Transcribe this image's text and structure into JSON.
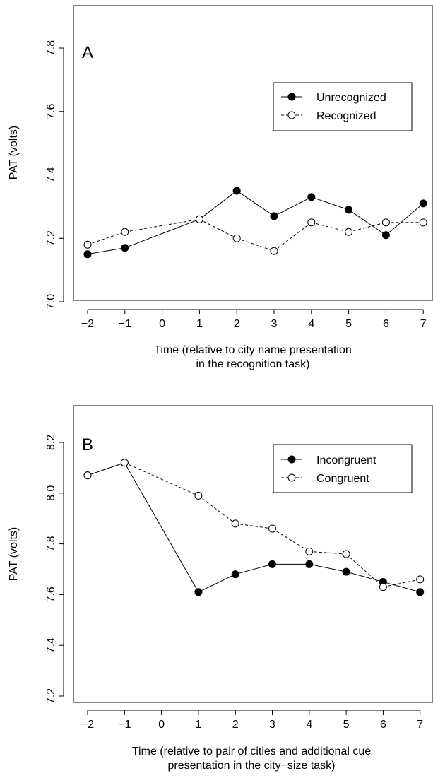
{
  "chart_data": [
    {
      "type": "line",
      "panel_label": "A",
      "x": [
        -2,
        -1,
        1,
        2,
        3,
        4,
        5,
        6,
        7
      ],
      "x_ticks": [
        -2,
        -1,
        0,
        1,
        2,
        3,
        4,
        5,
        6,
        7
      ],
      "y_ticks": [
        "7.0",
        "7.2",
        "7.4",
        "7.6",
        "7.8"
      ],
      "xlim": [
        -2.05,
        7.1
      ],
      "ylim": [
        7.0,
        7.88
      ],
      "xlabel": [
        "Time (relative to city name presentation",
        "in the recognition task)"
      ],
      "ylabel": "PAT (volts)",
      "legend_position": "upper-right",
      "series": [
        {
          "name": "Unrecognized",
          "marker": "filled-circle",
          "line": "solid",
          "values": [
            7.15,
            7.17,
            7.26,
            7.35,
            7.27,
            7.33,
            7.29,
            7.21,
            7.31
          ]
        },
        {
          "name": "Recognized",
          "marker": "open-circle",
          "line": "dashed",
          "values": [
            7.18,
            7.22,
            7.26,
            7.2,
            7.16,
            7.25,
            7.22,
            7.25,
            7.25
          ]
        }
      ]
    },
    {
      "type": "line",
      "panel_label": "B",
      "x": [
        -2,
        -1,
        1,
        2,
        3,
        4,
        5,
        6,
        7
      ],
      "x_ticks": [
        -2,
        -1,
        0,
        1,
        2,
        3,
        4,
        5,
        6,
        7
      ],
      "y_ticks": [
        "7.2",
        "7.4",
        "7.6",
        "7.8",
        "8.0",
        "8.2"
      ],
      "xlim": [
        -2.05,
        7.1
      ],
      "ylim": [
        7.1,
        8.32
      ],
      "xlabel": [
        "Time (relative to pair of cities and additional cue",
        "presentation in the city−size task)"
      ],
      "ylabel": "PAT (volts)",
      "legend_position": "upper-right",
      "series": [
        {
          "name": "Incongruent",
          "marker": "filled-circle",
          "line": "solid",
          "values": [
            8.07,
            8.12,
            7.61,
            7.68,
            7.72,
            7.72,
            7.69,
            7.65,
            7.61
          ]
        },
        {
          "name": "Congruent",
          "marker": "open-circle",
          "line": "dashed",
          "values": [
            8.07,
            8.12,
            7.99,
            7.88,
            7.86,
            7.77,
            7.76,
            7.63,
            7.66
          ]
        }
      ]
    }
  ]
}
